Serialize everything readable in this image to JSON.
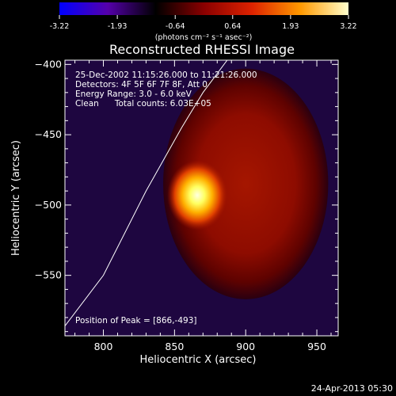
{
  "chart_data": {
    "type": "heatmap",
    "title": "Reconstructed RHESSI Image",
    "xlabel": "Heliocentric X (arcsec)",
    "ylabel": "Heliocentric Y (arcsec)",
    "xlim": [
      773,
      965
    ],
    "ylim": [
      -593,
      -397
    ],
    "xticks": [
      800,
      850,
      900,
      950
    ],
    "yticks": [
      -400,
      -450,
      -500,
      -550
    ],
    "colorbar": {
      "ticks": [
        "-3.22",
        "-1.93",
        "-0.64",
        "0.64",
        "1.93",
        "3.22"
      ],
      "range": [
        -3.22,
        3.22
      ],
      "units_label": "(photons cm⁻² s⁻¹ asec⁻²)",
      "colors": [
        "#0000ff",
        "#5500aa",
        "#000000",
        "#8a0000",
        "#dd2200",
        "#ff9900",
        "#ffffcc"
      ]
    },
    "annotations": [
      "25-Dec-2002 11:15:26.000 to 11:21:26.000",
      "Detectors: 4F 5F 6F 7F 8F, Att 0",
      "Energy Range: 3.0 - 6.0 keV",
      "Clean      Total counts: 6.03E+05"
    ],
    "peak_text": "Position of Peak = [866,-493]",
    "peak": [
      866,
      -493
    ],
    "source_ellipse": {
      "center": [
        900,
        -485
      ],
      "radius_x": 58,
      "radius_y": 82
    },
    "limb_curve": [
      [
        773,
        -586
      ],
      [
        800,
        -550
      ],
      [
        830,
        -490
      ],
      [
        855,
        -445
      ],
      [
        870,
        -420
      ],
      [
        887,
        -397
      ]
    ],
    "grid": false
  },
  "timestamp": "24-Apr-2013 05:30"
}
